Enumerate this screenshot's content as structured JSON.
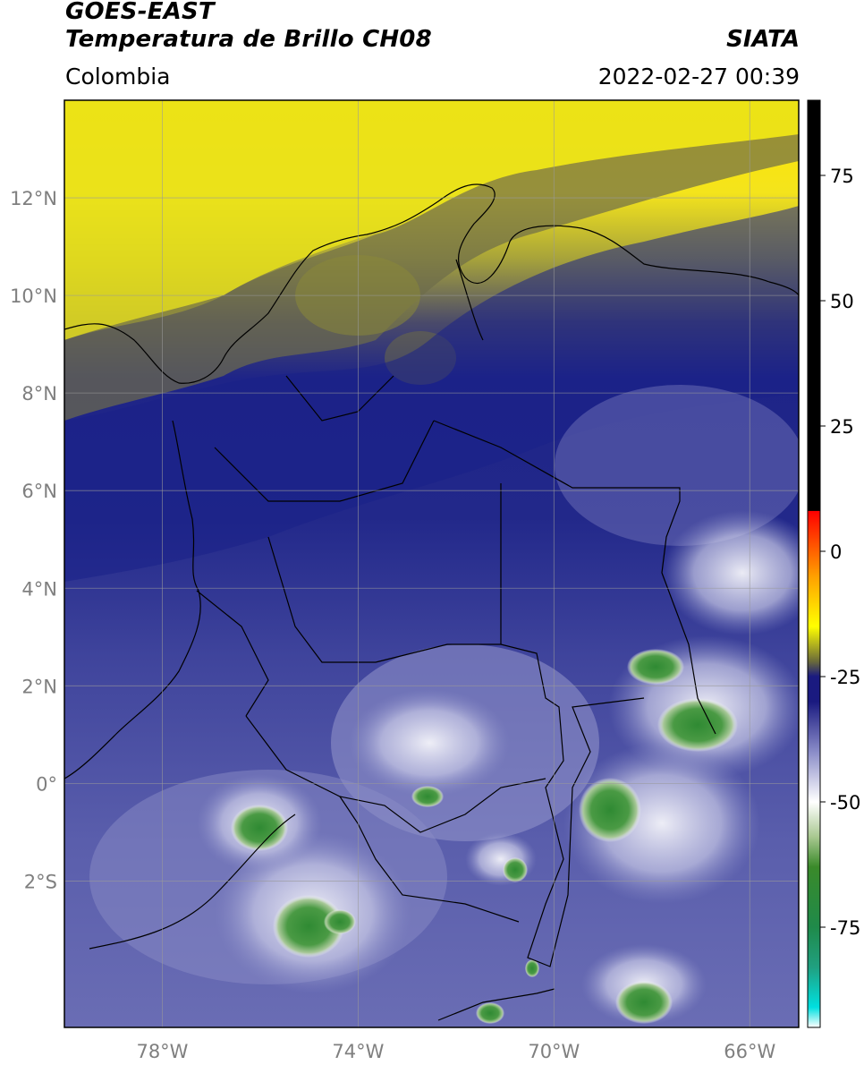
{
  "header": {
    "satellite": "GOES-EAST",
    "product": "Temperatura de Brillo CH08",
    "brand": "SIATA",
    "region": "Colombia",
    "datetime": "2022-02-27 00:39"
  },
  "map": {
    "lon_range": [
      -80,
      -65
    ],
    "lat_range": [
      -5.0,
      14.0
    ],
    "lat_ticks": [
      {
        "value": 12,
        "label": "12°N"
      },
      {
        "value": 10,
        "label": "10°N"
      },
      {
        "value": 8,
        "label": "8°N"
      },
      {
        "value": 6,
        "label": "6°N"
      },
      {
        "value": 4,
        "label": "4°N"
      },
      {
        "value": 2,
        "label": "2°N"
      },
      {
        "value": 0,
        "label": "0°"
      },
      {
        "value": -2,
        "label": "2°S"
      }
    ],
    "lon_ticks": [
      {
        "value": -78,
        "label": "78°W"
      },
      {
        "value": -74,
        "label": "74°W"
      },
      {
        "value": -70,
        "label": "70°W"
      },
      {
        "value": -66,
        "label": "66°W"
      }
    ],
    "grid": true
  },
  "colorbar": {
    "range": [
      -95,
      90
    ],
    "ticks": [
      {
        "value": 75,
        "label": "75"
      },
      {
        "value": 50,
        "label": "50"
      },
      {
        "value": 25,
        "label": "25"
      },
      {
        "value": 0,
        "label": "0"
      },
      {
        "value": -25,
        "label": "-25"
      },
      {
        "value": -50,
        "label": "-50"
      },
      {
        "value": -75,
        "label": "-75"
      }
    ],
    "stops": [
      {
        "value": -95,
        "color": "#ffffff"
      },
      {
        "value": -91,
        "color": "#00e0e0"
      },
      {
        "value": -83,
        "color": "#20a080"
      },
      {
        "value": -75,
        "color": "#1f8a4a"
      },
      {
        "value": -63,
        "color": "#3a8a2a"
      },
      {
        "value": -57,
        "color": "#a8c890"
      },
      {
        "value": -50,
        "color": "#ffffff"
      },
      {
        "value": -40,
        "color": "#8a8cc8"
      },
      {
        "value": -30,
        "color": "#1a1a80"
      },
      {
        "value": -25,
        "color": "#1a1a80"
      },
      {
        "value": -22,
        "color": "#6a6a3a"
      },
      {
        "value": -15,
        "color": "#ffff00"
      },
      {
        "value": -5,
        "color": "#ffa000"
      },
      {
        "value": 8,
        "color": "#ff0000"
      },
      {
        "value": 8.1,
        "color": "#000000"
      },
      {
        "value": 90,
        "color": "#000000"
      }
    ]
  },
  "palette": {
    "yellow": "#ffe600",
    "olive": "#8a8a30",
    "navy": "#181e84",
    "mid_blue": "#4a4fa0",
    "light_blue": "#8c8fc8",
    "white": "#f2f2f8",
    "green": "#3b8a3c",
    "border": "#000000",
    "grid": "#9a9a9a"
  }
}
